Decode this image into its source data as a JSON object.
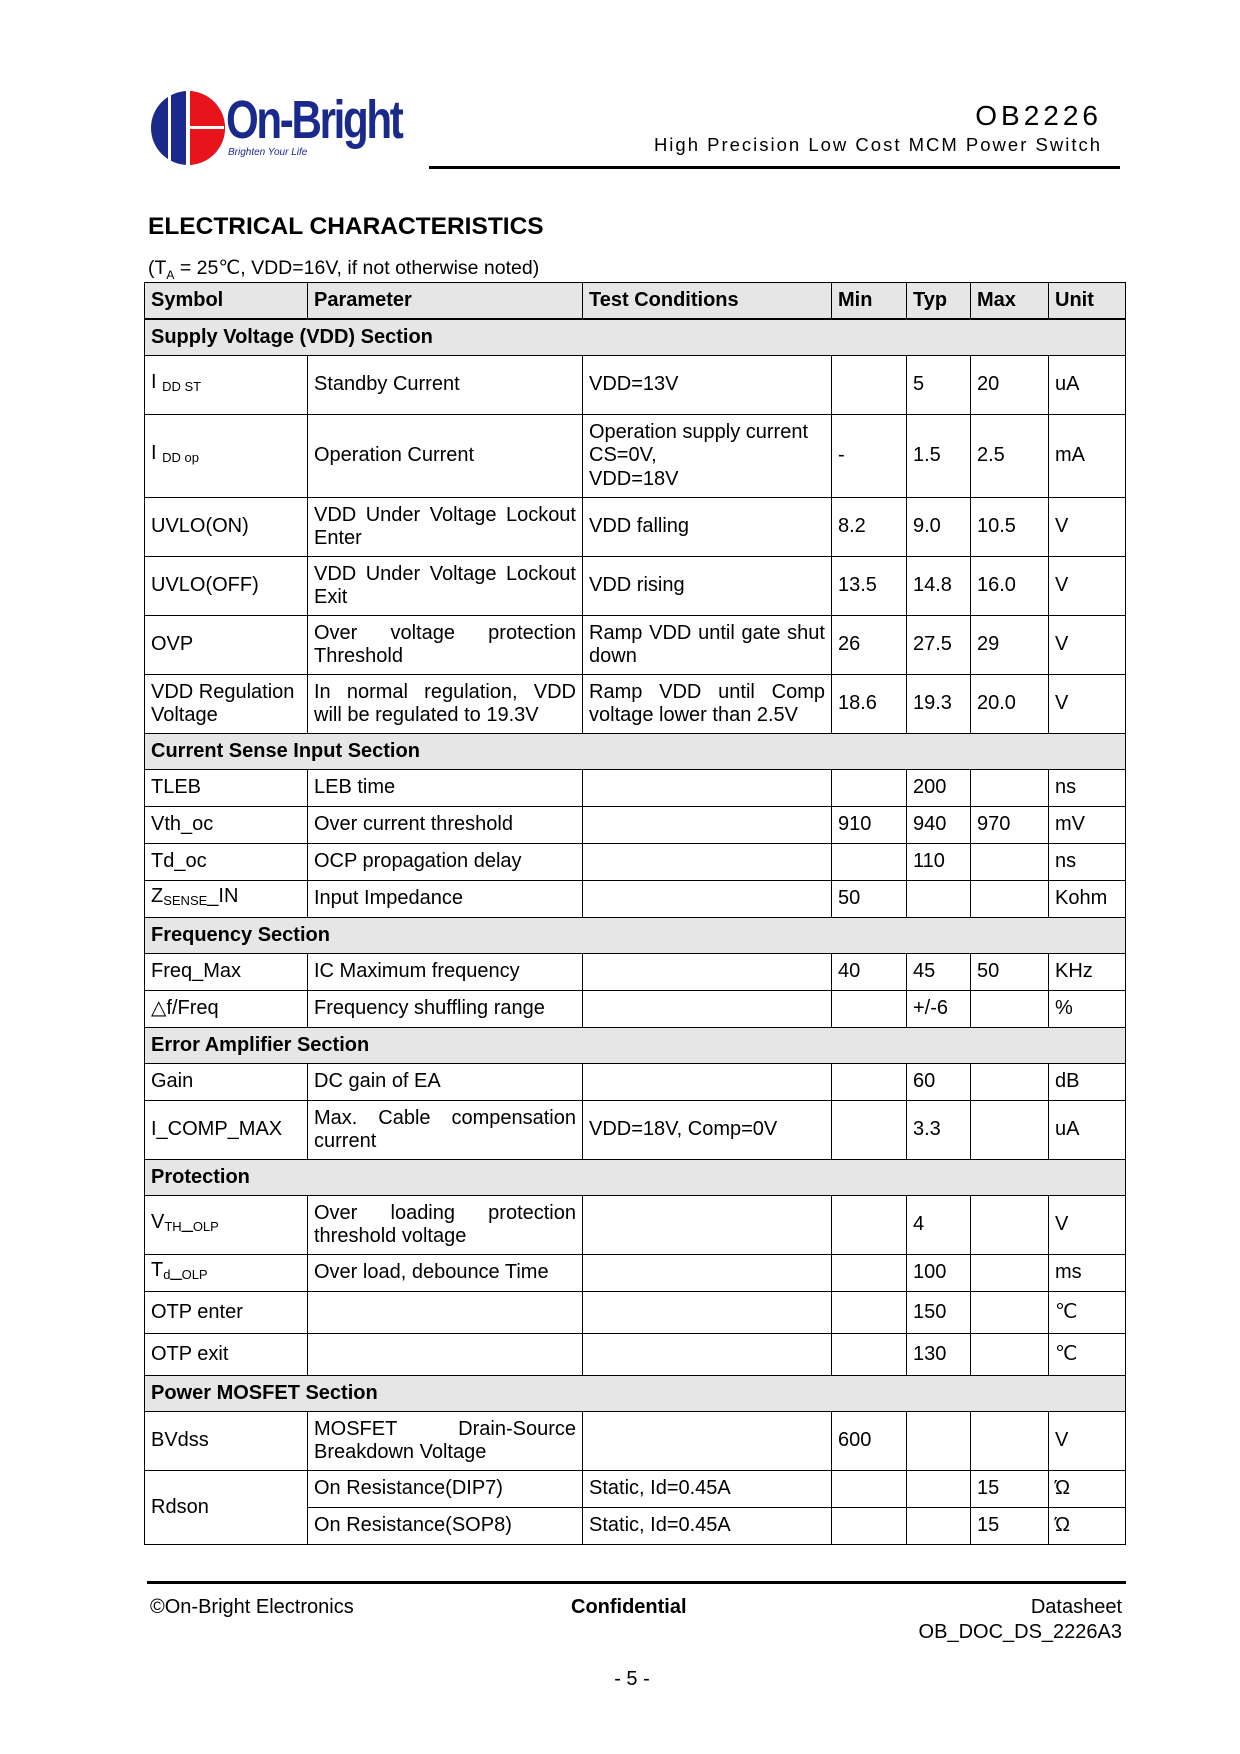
{
  "header": {
    "logo_text": "On-Bright",
    "logo_tagline": "Brighten Your Life",
    "title": "OB2226",
    "subtitle": "High Precision Low Cost MCM Power Switch",
    "colors": {
      "logo_blue": "#1a2a8c",
      "logo_red": "#e8141c"
    }
  },
  "section": {
    "heading": "ELECTRICAL CHARACTERISTICS",
    "conditions_pre": "(T",
    "conditions_sub": "A",
    "conditions_post": " = 25℃, VDD=16V, if not otherwise noted)"
  },
  "table": {
    "columns": [
      "Symbol",
      "Parameter",
      "Test Conditions",
      "Min",
      "Typ",
      "Max",
      "Unit"
    ],
    "rows": [
      {
        "section": "Supply Voltage (VDD) Section"
      },
      {
        "symbol": {
          "main": "I ",
          "sub": "DD ST"
        },
        "h": "r2",
        "cells": [
          "Standby Current",
          "VDD=13V",
          "",
          "5",
          "20",
          "uA"
        ]
      },
      {
        "symbol": {
          "main": "I ",
          "sub": "DD op"
        },
        "h": "r3",
        "cells": [
          "Operation Current",
          "Operation supply current\nCS=0V,\nVDD=18V",
          "-",
          "1.5",
          "2.5",
          "mA"
        ]
      },
      {
        "symbol": {
          "main": "UVLO(ON)"
        },
        "h": "r2",
        "cells": [
          "VDD Under Voltage Lockout Enter",
          "VDD falling",
          "8.2",
          "9.0",
          "10.5",
          "V"
        ]
      },
      {
        "symbol": {
          "main": "UVLO(OFF)"
        },
        "h": "r2",
        "cells": [
          "VDD Under Voltage Lockout Exit",
          "VDD rising",
          "13.5",
          "14.8",
          "16.0",
          "V"
        ]
      },
      {
        "symbol": {
          "main": "OVP"
        },
        "h": "r2",
        "cells": [
          "Over voltage protection Threshold",
          "Ramp VDD until gate shut down",
          "26",
          "27.5",
          "29",
          "V"
        ]
      },
      {
        "symbol": {
          "main": "VDD Regulation Voltage"
        },
        "h": "r2",
        "cells": [
          "In normal regulation, VDD will be regulated to 19.3V",
          "Ramp VDD until Comp voltage lower than 2.5V",
          "18.6",
          "19.3",
          "20.0",
          "V"
        ]
      },
      {
        "section": "Current Sense Input Section"
      },
      {
        "symbol": {
          "main": "TLEB"
        },
        "h": "r1",
        "cells": [
          "LEB time",
          "",
          "",
          "200",
          "",
          "ns"
        ]
      },
      {
        "symbol": {
          "main": "Vth_oc"
        },
        "h": "r1",
        "cells": [
          "Over current threshold",
          "",
          "910",
          "940",
          "970",
          "mV"
        ]
      },
      {
        "symbol": {
          "main": "Td_oc"
        },
        "h": "r1",
        "cells": [
          "OCP propagation delay",
          "",
          "",
          "110",
          "",
          "ns"
        ]
      },
      {
        "symbol": {
          "main": "Z",
          "sub": "SENSE",
          "suffix": "_IN"
        },
        "h": "r1",
        "cells": [
          "Input Impedance",
          "",
          "50",
          "",
          "",
          "Kohm"
        ]
      },
      {
        "section": "Frequency Section"
      },
      {
        "symbol": {
          "main": "Freq_Max"
        },
        "h": "r1",
        "cells": [
          "IC Maximum frequency",
          "",
          "40",
          "45",
          "50",
          "KHz"
        ]
      },
      {
        "symbol": {
          "main": "△f/Freq"
        },
        "h": "r1",
        "cells": [
          "Frequency shuffling range",
          "",
          "",
          "+/-6",
          "",
          "%"
        ]
      },
      {
        "section": "Error Amplifier Section"
      },
      {
        "symbol": {
          "main": "Gain"
        },
        "h": "r1",
        "cells": [
          "DC gain of EA",
          "",
          "",
          "60",
          "",
          "dB"
        ]
      },
      {
        "symbol": {
          "main": "I_COMP_MAX"
        },
        "h": "r2",
        "cells": [
          "Max. Cable compensation current",
          "VDD=18V, Comp=0V",
          "",
          "3.3",
          "",
          "uA"
        ]
      },
      {
        "section": "Protection"
      },
      {
        "symbol": {
          "main": "V",
          "sub": "TH",
          "suffix": "_",
          "sub2": "OLP"
        },
        "h": "r2",
        "cells": [
          "Over loading protection threshold voltage",
          "",
          "",
          "4",
          "",
          "V"
        ]
      },
      {
        "symbol": {
          "main": "T",
          "sub": "d",
          "suffix": "_",
          "sub2": "OLP"
        },
        "h": "r1",
        "cells": [
          "Over load,  debounce Time",
          "",
          "",
          "100",
          "",
          "ms"
        ]
      },
      {
        "symbol": {
          "main": "OTP enter"
        },
        "h": "rt",
        "cells": [
          "",
          "",
          "",
          "150",
          "",
          "℃"
        ]
      },
      {
        "symbol": {
          "main": "OTP exit"
        },
        "h": "rt",
        "cells": [
          "",
          "",
          "",
          "130",
          "",
          "℃"
        ]
      },
      {
        "section": "Power MOSFET Section"
      },
      {
        "symbol": {
          "main": "BVdss"
        },
        "h": "r2",
        "cells": [
          "MOSFET Drain-Source Breakdown Voltage",
          "",
          "600",
          "",
          "",
          "V"
        ]
      },
      {
        "symbol": {
          "main": "Rdson"
        },
        "rowspan": 2,
        "h": "r1",
        "cells": [
          "On Resistance(DIP7)",
          "Static, Id=0.45A",
          "",
          "",
          "15",
          "Ώ"
        ]
      },
      {
        "h": "r1",
        "cells": [
          "On Resistance(SOP8)",
          "Static, Id=0.45A",
          "",
          "",
          "15",
          "Ώ"
        ]
      }
    ]
  },
  "footer": {
    "copyright": "©On-Bright Electronics",
    "confidential": "Confidential",
    "doc_type": "Datasheet",
    "doc_id": "OB_DOC_DS_2226A3",
    "page": "- 5 -"
  }
}
